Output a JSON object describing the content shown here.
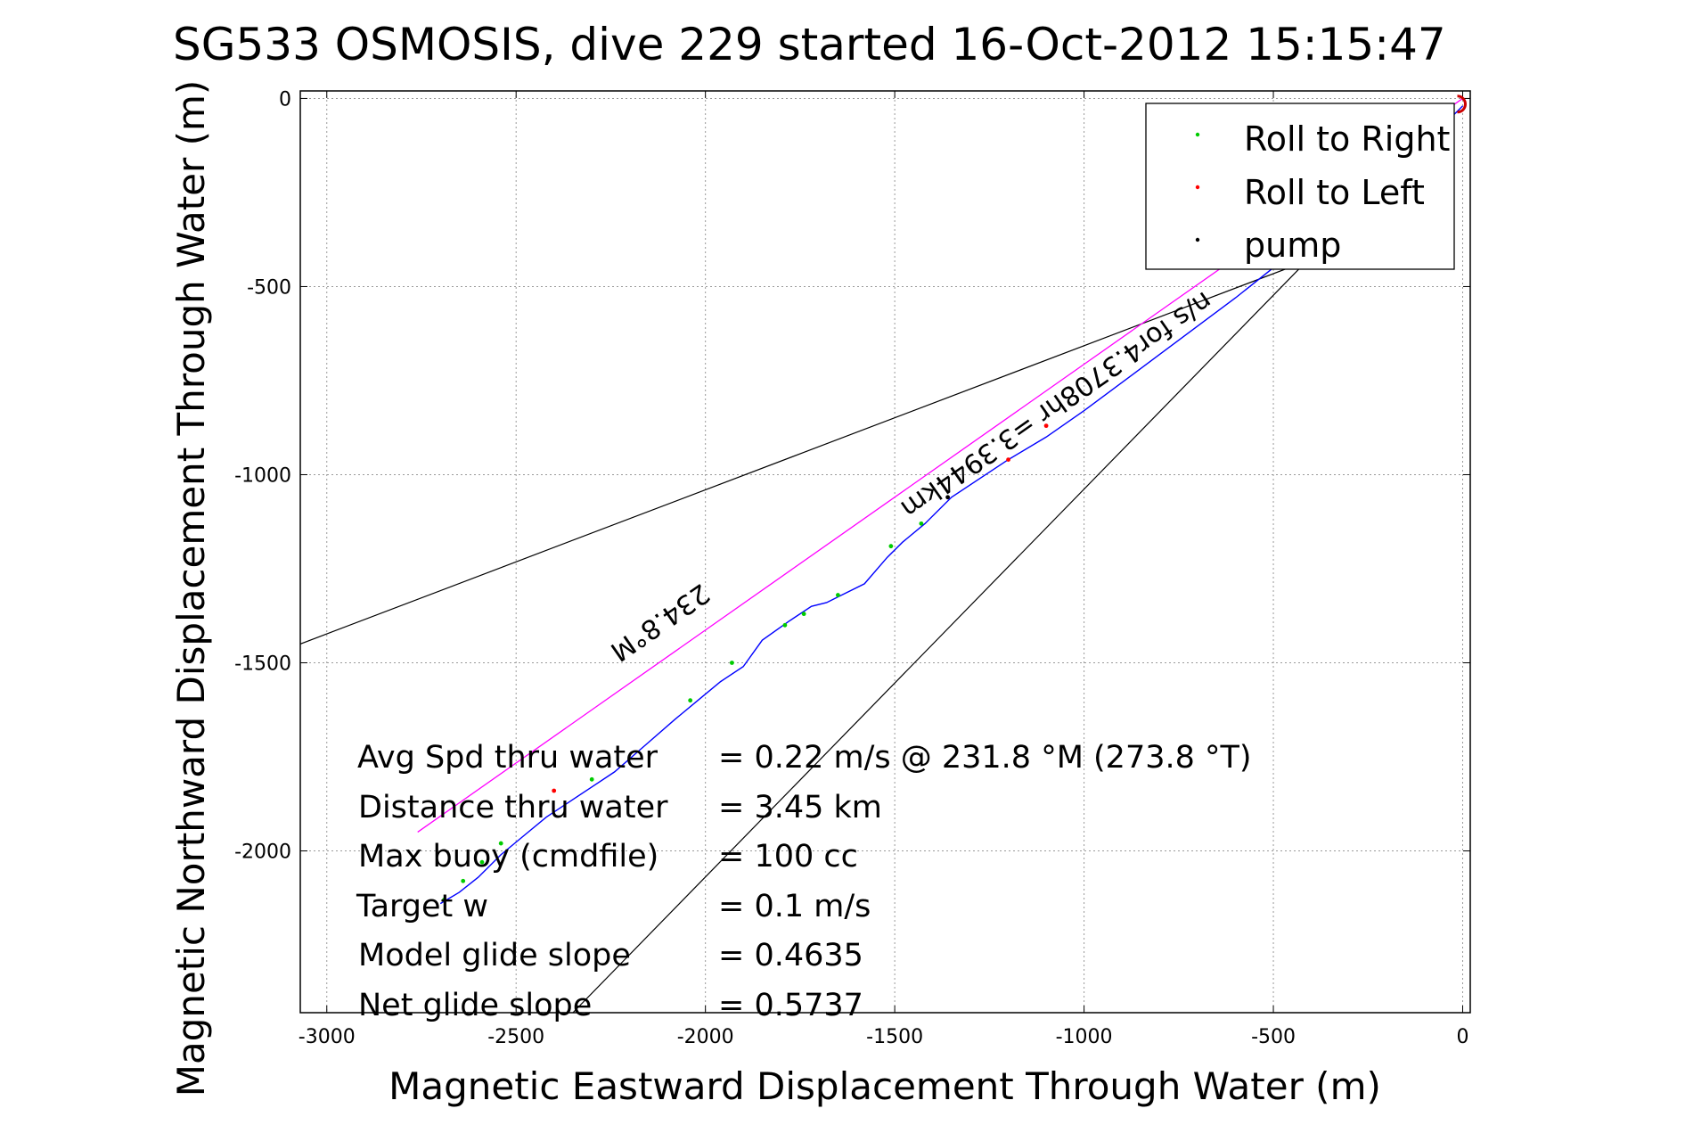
{
  "chart_data": {
    "type": "line",
    "title": "SG533 OSMOSIS, dive 229 started 16-Oct-2012 15:15:47",
    "xlabel": "Magnetic Eastward Displacement Through Water (m)",
    "ylabel": "Magnetic Northward Displacement Through Water (m)",
    "xlim": [
      -3070,
      20
    ],
    "ylim": [
      -2430,
      20
    ],
    "xticks": [
      -3000,
      -2500,
      -2000,
      -1500,
      -1000,
      -500,
      0
    ],
    "yticks": [
      -2000,
      -1500,
      -1000,
      -500,
      0
    ],
    "grid": true,
    "legend_position": "top-right",
    "legend": [
      {
        "label": "Roll to Right",
        "color": "#00cc00"
      },
      {
        "label": "Roll to Left",
        "color": "#ff0000"
      },
      {
        "label": "pump",
        "color": "#000000"
      }
    ],
    "track": {
      "name": "track",
      "color": "#0000ff",
      "x": [
        0,
        -60,
        -200,
        -400,
        -600,
        -800,
        -1000,
        -1100,
        -1200,
        -1350,
        -1420,
        -1480,
        -1520,
        -1580,
        -1640,
        -1680,
        -1720,
        -1780,
        -1850,
        -1900,
        -1960,
        -2020,
        -2080,
        -2160,
        -2240,
        -2300,
        -2360,
        -2420,
        -2480,
        -2540,
        -2600,
        -2650,
        -2700
      ],
      "y": [
        -20,
        -80,
        -200,
        -370,
        -530,
        -680,
        -830,
        -900,
        -960,
        -1060,
        -1130,
        -1180,
        -1220,
        -1290,
        -1320,
        -1340,
        -1350,
        -1390,
        -1440,
        -1510,
        -1550,
        -1600,
        -1650,
        -1720,
        -1790,
        -1830,
        -1870,
        -1910,
        -1960,
        -2010,
        -2070,
        -2110,
        -2140
      ]
    },
    "roll_right_points": {
      "x": [
        -1430,
        -1510,
        -1650,
        -1740,
        -1790,
        -1930,
        -2040,
        -2300,
        -2540,
        -2590,
        -2640,
        -2690
      ],
      "y": [
        -1130,
        -1190,
        -1320,
        -1370,
        -1400,
        -1500,
        -1600,
        -1810,
        -1980,
        -2030,
        -2080,
        -2130
      ]
    },
    "roll_left_points": {
      "x": [
        -1100,
        -1200,
        -2400
      ],
      "y": [
        -870,
        -960,
        -1840
      ]
    },
    "pump_points": {
      "x": [
        -1360
      ],
      "y": [
        -1060
      ]
    },
    "heading_line": {
      "label": "234.8°M",
      "color": "#ff00ff",
      "x": [
        0,
        -2760
      ],
      "y": [
        0,
        -1950
      ]
    },
    "bound_lines": [
      {
        "color": "#000000",
        "x": [
          -250,
          -3070
        ],
        "y": [
          -370,
          -1450
        ]
      },
      {
        "color": "#000000",
        "x": [
          -400,
          -2350
        ],
        "y": [
          -420,
          -2430
        ]
      }
    ],
    "start_marker": {
      "color": "#cc0000",
      "x": 0,
      "y": -15
    },
    "annotations": {
      "heading_label": "234.8°M",
      "speed_label": "0.22m/s for4.3708hr =3.3944km",
      "speed_label_visible": "n/s for4.3708hr =3.3944km"
    },
    "stats": [
      {
        "label": "Avg Spd thru water",
        "value": "=  0.22 m/s @ 231.8 °M (273.8 °T)"
      },
      {
        "label": "Distance thru water",
        "value": "=  3.45 km"
      },
      {
        "label": "Max buoy (cmdfile)",
        "value": "= 100 cc"
      },
      {
        "label": "Target w",
        "value": "= 0.1 m/s"
      },
      {
        "label": "Model glide slope",
        "value": "= 0.4635"
      },
      {
        "label": "Net glide slope",
        "value": "= 0.5737"
      }
    ]
  }
}
